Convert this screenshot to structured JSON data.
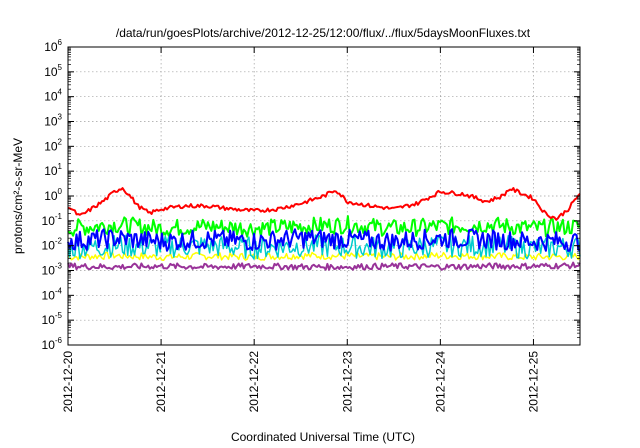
{
  "chart_data": {
    "type": "line",
    "title": "/data/run/goesPlots/archive/2012-12-25/12:00/flux/../flux/5daysMoonFluxes.txt",
    "xlabel": "Coordinated Universal Time (UTC)",
    "ylabel": "protons/cm²-s-sr-MeV",
    "y_scale": "log",
    "ylim": [
      1e-06,
      1000000.0
    ],
    "xlim": [
      "2012-12-20",
      "2012-12-25 12:00"
    ],
    "x_ticks": [
      "2012-12-20",
      "2012-12-21",
      "2012-12-22",
      "2012-12-23",
      "2012-12-24",
      "2012-12-25"
    ],
    "y_ticks": [
      {
        "value": 1e-06,
        "base": "10",
        "exp": "-6"
      },
      {
        "value": 1e-05,
        "base": "10",
        "exp": "-5"
      },
      {
        "value": 0.0001,
        "base": "10",
        "exp": "-4"
      },
      {
        "value": 0.001,
        "base": "10",
        "exp": "-3"
      },
      {
        "value": 0.01,
        "base": "10",
        "exp": "-2"
      },
      {
        "value": 0.1,
        "base": "10",
        "exp": "-1"
      },
      {
        "value": 1,
        "base": "10",
        "exp": "0"
      },
      {
        "value": 10.0,
        "base": "10",
        "exp": "1"
      },
      {
        "value": 100.0,
        "base": "10",
        "exp": "2"
      },
      {
        "value": 1000.0,
        "base": "10",
        "exp": "3"
      },
      {
        "value": 10000.0,
        "base": "10",
        "exp": "4"
      },
      {
        "value": 100000.0,
        "base": "10",
        "exp": "5"
      },
      {
        "value": 1000000.0,
        "base": "10",
        "exp": "6"
      }
    ],
    "grid": true,
    "legend": "none",
    "series": [
      {
        "color": "#ff0000",
        "x": [
          "2012-12-20 00:00",
          "2012-12-20 03:00",
          "2012-12-20 06:00",
          "2012-12-20 09:00",
          "2012-12-20 12:00",
          "2012-12-20 14:00",
          "2012-12-20 16:00",
          "2012-12-20 18:00",
          "2012-12-20 21:00",
          "2012-12-21 00:00",
          "2012-12-21 06:00",
          "2012-12-21 12:00",
          "2012-12-21 18:00",
          "2012-12-22 00:00",
          "2012-12-22 06:00",
          "2012-12-22 12:00",
          "2012-12-22 18:00",
          "2012-12-22 21:00",
          "2012-12-23 00:00",
          "2012-12-23 06:00",
          "2012-12-23 12:00",
          "2012-12-23 18:00",
          "2012-12-24 00:00",
          "2012-12-24 06:00",
          "2012-12-24 12:00",
          "2012-12-24 16:00",
          "2012-12-24 18:00",
          "2012-12-25 00:00",
          "2012-12-25 03:00",
          "2012-12-25 06:00",
          "2012-12-25 09:00",
          "2012-12-25 12:00"
        ],
        "y": [
          0.4,
          0.15,
          0.3,
          0.6,
          1.5,
          2.2,
          1.0,
          0.4,
          0.2,
          0.3,
          0.4,
          0.4,
          0.3,
          0.25,
          0.3,
          0.5,
          1.0,
          1.8,
          0.6,
          0.4,
          0.3,
          0.5,
          1.5,
          1.2,
          0.6,
          1.0,
          2.0,
          0.8,
          0.2,
          0.12,
          0.3,
          1.3
        ]
      },
      {
        "color": "#00ff00",
        "x": [
          "2012-12-20 00:00",
          "2012-12-20 12:00",
          "2012-12-21 00:00",
          "2012-12-21 12:00",
          "2012-12-22 00:00",
          "2012-12-22 12:00",
          "2012-12-23 00:00",
          "2012-12-23 12:00",
          "2012-12-24 00:00",
          "2012-12-24 12:00",
          "2012-12-25 00:00",
          "2012-12-25 12:00"
        ],
        "y": [
          0.05,
          0.07,
          0.05,
          0.06,
          0.05,
          0.06,
          0.07,
          0.05,
          0.06,
          0.07,
          0.05,
          0.06
        ]
      },
      {
        "color": "#00cccc",
        "x": [
          "2012-12-20 00:00",
          "2012-12-20 12:00",
          "2012-12-21 00:00",
          "2012-12-21 12:00",
          "2012-12-22 00:00",
          "2012-12-22 12:00",
          "2012-12-23 00:00",
          "2012-12-23 12:00",
          "2012-12-24 00:00",
          "2012-12-24 12:00",
          "2012-12-25 00:00",
          "2012-12-25 12:00"
        ],
        "y": [
          0.008,
          0.01,
          0.009,
          0.01,
          0.008,
          0.01,
          0.009,
          0.008,
          0.01,
          0.01,
          0.008,
          0.009
        ]
      },
      {
        "color": "#0000ff",
        "x": [
          "2012-12-20 00:00",
          "2012-12-20 12:00",
          "2012-12-21 00:00",
          "2012-12-21 12:00",
          "2012-12-22 00:00",
          "2012-12-22 12:00",
          "2012-12-23 00:00",
          "2012-12-23 12:00",
          "2012-12-24 00:00",
          "2012-12-24 12:00",
          "2012-12-25 00:00",
          "2012-12-25 12:00"
        ],
        "y": [
          0.015,
          0.02,
          0.015,
          0.018,
          0.015,
          0.02,
          0.018,
          0.015,
          0.02,
          0.018,
          0.015,
          0.015
        ]
      },
      {
        "color": "#ffff00",
        "x": [
          "2012-12-20 00:00",
          "2012-12-20 12:00",
          "2012-12-21 00:00",
          "2012-12-21 12:00",
          "2012-12-22 00:00",
          "2012-12-22 12:00",
          "2012-12-23 00:00",
          "2012-12-23 12:00",
          "2012-12-24 00:00",
          "2012-12-24 12:00",
          "2012-12-25 00:00",
          "2012-12-25 12:00"
        ],
        "y": [
          0.0035,
          0.004,
          0.0035,
          0.0038,
          0.0036,
          0.004,
          0.0038,
          0.0036,
          0.004,
          0.0038,
          0.0035,
          0.0037
        ]
      },
      {
        "color": "#993399",
        "x": [
          "2012-12-20 00:00",
          "2012-12-20 12:00",
          "2012-12-21 00:00",
          "2012-12-21 12:00",
          "2012-12-22 00:00",
          "2012-12-22 12:00",
          "2012-12-23 00:00",
          "2012-12-23 12:00",
          "2012-12-24 00:00",
          "2012-12-24 12:00",
          "2012-12-25 00:00",
          "2012-12-25 12:00"
        ],
        "y": [
          0.0015,
          0.0014,
          0.0015,
          0.0014,
          0.0015,
          0.0014,
          0.0014,
          0.0015,
          0.0014,
          0.0015,
          0.0015,
          0.0016
        ]
      }
    ]
  }
}
